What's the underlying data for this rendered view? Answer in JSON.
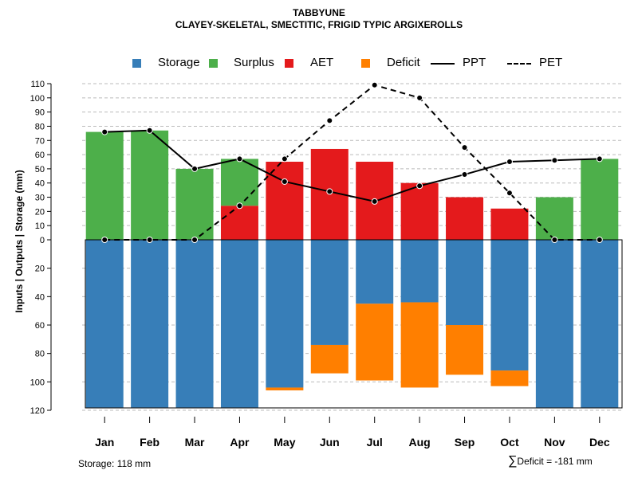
{
  "chart_data": {
    "type": "bar",
    "title": "TABBYUNE",
    "subtitle": "CLAYEY-SKELETAL, SMECTITIC, FRIGID TYPIC ARGIXEROLLS",
    "ylabel": "Inputs | Outputs | Storage    (mm)",
    "categories": [
      "Jan",
      "Feb",
      "Mar",
      "Apr",
      "May",
      "Jun",
      "Jul",
      "Aug",
      "Sep",
      "Oct",
      "Nov",
      "Dec"
    ],
    "upper_axis": {
      "ylim": [
        0,
        110
      ],
      "ticks": [
        "0",
        "10",
        "20",
        "30",
        "40",
        "50",
        "60",
        "70",
        "80",
        "90",
        "100",
        "110"
      ]
    },
    "lower_axis": {
      "ylim": [
        0,
        120
      ],
      "ticks": [
        "20",
        "40",
        "60",
        "80",
        "100",
        "120"
      ]
    },
    "legend": {
      "storage": "Storage",
      "surplus": "Surplus",
      "aet": "AET",
      "deficit": "Deficit",
      "ppt": "PPT",
      "pet": "PET"
    },
    "series": [
      {
        "name": "Surplus",
        "values": [
          76,
          77,
          50,
          33,
          0,
          0,
          0,
          0,
          0,
          0,
          30,
          57
        ]
      },
      {
        "name": "AET",
        "values": [
          0,
          0,
          0,
          24,
          55,
          64,
          55,
          40,
          30,
          22,
          0,
          0
        ]
      },
      {
        "name": "Storage",
        "values": [
          118,
          118,
          118,
          118,
          104,
          74,
          45,
          44,
          60,
          92,
          118,
          118
        ]
      },
      {
        "name": "Deficit",
        "values": [
          0,
          0,
          0,
          0,
          2,
          20,
          54,
          60,
          35,
          11,
          0,
          0
        ]
      },
      {
        "name": "PPT",
        "values": [
          76,
          77,
          50,
          57,
          41,
          34,
          27,
          38,
          46,
          55,
          56,
          57
        ]
      },
      {
        "name": "PET",
        "values": [
          0,
          0,
          0,
          24,
          57,
          84,
          109,
          100,
          65,
          33,
          0,
          0
        ]
      }
    ]
  },
  "colors": {
    "storage": "#377EB8",
    "surplus": "#4DAF4A",
    "aet": "#E41A1C",
    "deficit": "#FF7F00",
    "line": "#000000",
    "grid": "#bbbbbb"
  },
  "footer": {
    "storage_note": "Storage: 118 mm",
    "deficit_sigma": "∑",
    "deficit_note": "Deficit = -181 mm"
  }
}
